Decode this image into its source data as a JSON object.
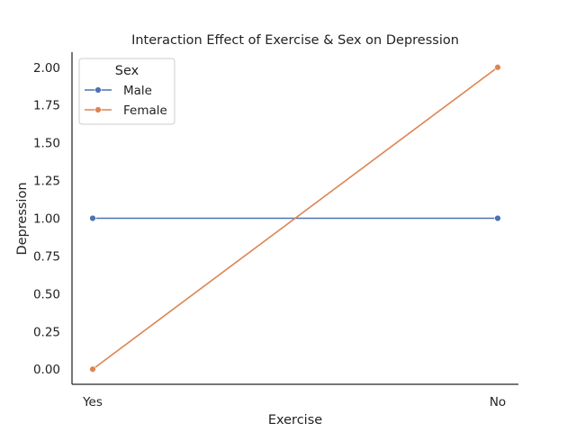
{
  "chart_data": {
    "type": "line",
    "title": "Interaction Effect of Exercise & Sex on Depression",
    "xlabel": "Exercise",
    "ylabel": "Depression",
    "categories": [
      "Yes",
      "No"
    ],
    "series": [
      {
        "name": "Male",
        "values": [
          1.0,
          1.0
        ],
        "color": "#4c72b0"
      },
      {
        "name": "Female",
        "values": [
          0.0,
          2.0
        ],
        "color": "#dd8452"
      }
    ],
    "ylim": [
      -0.1,
      2.1
    ],
    "yticks": [
      "0.00",
      "0.25",
      "0.50",
      "0.75",
      "1.00",
      "1.25",
      "1.50",
      "1.75",
      "2.00"
    ],
    "legend": {
      "title": "Sex",
      "placement": "top-left"
    },
    "grid": false
  }
}
